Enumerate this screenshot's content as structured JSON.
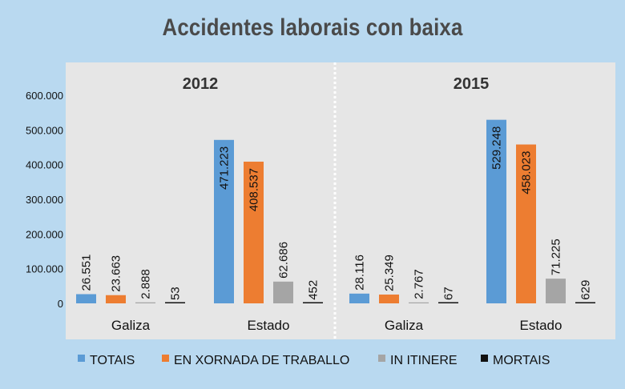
{
  "chart_data": {
    "type": "bar",
    "title": "Accidentes laborais con baixa",
    "ylim": [
      0,
      600000
    ],
    "yticks": [
      "0",
      "100.000",
      "200.000",
      "300.000",
      "400.000",
      "500.000",
      "600.000"
    ],
    "ytick_values": [
      0,
      100000,
      200000,
      300000,
      400000,
      500000,
      600000
    ],
    "grid": false,
    "legend_position": "bottom",
    "series": [
      {
        "name": "TOTAIS",
        "color": "#5b9bd5"
      },
      {
        "name": "EN XORNADA DE TRABALLO",
        "color": "#ed7d31"
      },
      {
        "name": "IN ITINERE",
        "color": "#a5a5a5"
      },
      {
        "name": "MORTAIS",
        "color": "#111111"
      }
    ],
    "panels": [
      {
        "title": "2012",
        "categories": [
          "Galiza",
          "Estado"
        ],
        "values": [
          [
            26551,
            23663,
            2888,
            53
          ],
          [
            471223,
            408537,
            62686,
            452
          ]
        ],
        "labels": [
          [
            "26.551",
            "23.663",
            "2.888",
            "53"
          ],
          [
            "471.223",
            "408.537",
            "62.686",
            "452"
          ]
        ]
      },
      {
        "title": "2015",
        "categories": [
          "Galiza",
          "Estado"
        ],
        "values": [
          [
            28116,
            25349,
            2767,
            67
          ],
          [
            529248,
            458023,
            71225,
            629
          ]
        ],
        "labels": [
          [
            "28.116",
            "25.349",
            "2.767",
            "67"
          ],
          [
            "529.248",
            "458.023",
            "71.225",
            "629"
          ]
        ]
      }
    ]
  }
}
